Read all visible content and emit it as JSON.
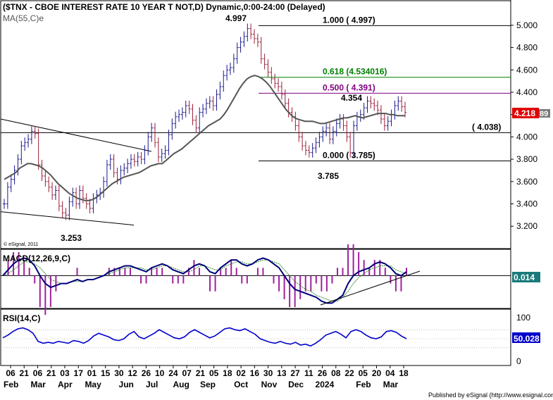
{
  "header": {
    "title": "($TNX - CBOE INTEREST RATE 10 YEAR T NOT,D) Dynamic,0:00-24:00 (Delayed)",
    "ma_label": "MA(55,C)e",
    "copyright": "© eSignal, 2011",
    "footer": "Published by eSignal (http://www.esignal.com)"
  },
  "colors": {
    "price_bar": "#1a1a8c",
    "price_bar_down": "#9a1f3a",
    "ma_line": "#555555",
    "fib_green": "#008000",
    "fib_purple": "#800080",
    "macd_line": "#00007a",
    "signal_line": "#2f8f2f",
    "histogram": "#a020a0",
    "rsi_line": "#0000cc",
    "price_box": "#e00000",
    "value_box_blue": "#0000cc",
    "value_box_teal": "#1a7a7a"
  },
  "chart_data": [
    {
      "type": "line",
      "name": "price-panel",
      "series_type": "ohlc-bars",
      "y_ticks": [
        "5.000",
        "4.800",
        "4.600",
        "4.400",
        "4.200",
        "4.000",
        "3.800",
        "3.600",
        "3.400",
        "3.200"
      ],
      "ylim": [
        3.05,
        5.1
      ],
      "last_price": "4.218",
      "last_price_suffix": "89",
      "close": [
        3.4,
        3.55,
        3.62,
        3.7,
        3.8,
        3.92,
        3.95,
        3.98,
        4.05,
        4.03,
        3.75,
        3.65,
        3.6,
        3.55,
        3.48,
        3.52,
        3.38,
        3.32,
        3.3,
        3.42,
        3.5,
        3.4,
        3.52,
        3.45,
        3.4,
        3.36,
        3.45,
        3.48,
        3.5,
        3.6,
        3.75,
        3.8,
        3.68,
        3.62,
        3.7,
        3.72,
        3.76,
        3.8,
        3.78,
        3.82,
        3.8,
        3.88,
        4.0,
        4.08,
        3.95,
        3.82,
        3.85,
        3.88,
        4.02,
        4.12,
        4.18,
        4.2,
        4.22,
        4.28,
        4.25,
        4.15,
        4.08,
        4.22,
        4.25,
        4.3,
        4.32,
        4.28,
        4.38,
        4.45,
        4.55,
        4.6,
        4.62,
        4.7,
        4.8,
        4.85,
        4.9,
        4.97,
        4.92,
        4.88,
        4.85,
        4.7,
        4.65,
        4.58,
        4.52,
        4.48,
        4.45,
        4.38,
        4.3,
        4.22,
        4.18,
        4.1,
        4.0,
        3.92,
        3.88,
        3.86,
        3.9,
        3.95,
        4.0,
        4.05,
        4.08,
        3.98,
        4.05,
        4.12,
        4.16,
        4.1,
        4.0,
        3.86,
        4.1,
        4.18,
        4.2,
        4.26,
        4.32,
        4.3,
        4.28,
        4.24,
        4.16,
        4.1,
        4.14,
        4.2,
        4.28,
        4.32,
        4.27,
        4.22
      ],
      "ma": [
        3.62,
        3.64,
        3.66,
        3.68,
        3.72,
        3.74,
        3.76,
        3.76,
        3.75,
        3.74,
        3.72,
        3.69,
        3.66,
        3.62,
        3.58,
        3.55,
        3.52,
        3.49,
        3.47,
        3.45,
        3.44,
        3.43,
        3.43,
        3.44,
        3.46,
        3.49,
        3.52,
        3.55,
        3.58,
        3.6,
        3.62,
        3.64,
        3.65,
        3.66,
        3.67,
        3.68,
        3.7,
        3.72,
        3.74,
        3.75,
        3.76,
        3.76,
        3.79,
        3.82,
        3.85,
        3.87,
        3.89,
        3.92,
        3.95,
        3.98,
        4.01,
        4.04,
        4.07,
        4.1,
        4.12,
        4.14,
        4.16,
        4.2,
        4.25,
        4.31,
        4.37,
        4.43,
        4.48,
        4.52,
        4.54,
        4.55,
        4.54,
        4.52,
        4.49,
        4.45,
        4.4,
        4.35,
        4.3,
        4.25,
        4.21,
        4.18,
        4.16,
        4.15,
        4.14,
        4.14,
        4.14,
        4.13,
        4.12,
        4.12,
        4.13,
        4.14,
        4.15,
        4.16,
        4.17,
        4.17,
        4.18,
        4.19,
        4.18,
        4.17,
        4.18,
        4.19,
        4.2,
        4.21,
        4.21,
        4.21,
        4.2,
        4.2,
        4.19,
        4.19,
        4.19
      ],
      "fib_levels": [
        {
          "value": 4.997,
          "label": "1.000 ( 4.997)"
        },
        {
          "value": 4.534016,
          "label": "0.618 (4.534016)"
        },
        {
          "value": 4.391,
          "label": "0.500 ( 4.391)"
        },
        {
          "value": 3.785,
          "label": "0.000 ( 3.785)"
        }
      ],
      "support_level": {
        "value": 4.038,
        "label": "( 4.038)"
      },
      "annotations": [
        {
          "text": "4.997",
          "x_index": 71
        },
        {
          "text": "4.354",
          "x_index": 100
        },
        {
          "text": "3.785",
          "x_index": 92
        },
        {
          "text": "3.253",
          "x_index": 18
        }
      ]
    },
    {
      "type": "line",
      "name": "macd-panel",
      "label": "MACD(12,26,9,C)",
      "value": "0.014",
      "macd": [
        0.0,
        0.03,
        0.06,
        0.08,
        0.09,
        0.08,
        0.05,
        0.0,
        -0.04,
        -0.06,
        -0.05,
        -0.04,
        -0.04,
        -0.03,
        -0.02,
        -0.03,
        -0.02,
        -0.02,
        -0.01,
        0.0,
        0.02,
        0.03,
        0.04,
        0.05,
        0.05,
        0.04,
        0.03,
        0.02,
        0.04,
        0.05,
        0.06,
        0.05,
        0.03,
        0.02,
        0.01,
        0.03,
        0.05,
        0.06,
        0.05,
        0.02,
        0.01,
        0.04,
        0.06,
        0.08,
        0.08,
        0.06,
        0.05,
        0.06,
        0.08,
        0.09,
        0.08,
        0.06,
        0.04,
        0.0,
        -0.04,
        -0.07,
        -0.08,
        -0.09,
        -0.1,
        -0.11,
        -0.13,
        -0.14,
        -0.14,
        -0.12,
        -0.1,
        -0.04,
        0.0,
        0.02,
        0.03,
        0.04,
        0.06,
        0.07,
        0.06,
        0.04,
        0.01,
        0.0,
        0.02
      ],
      "signal": [
        0.0,
        0.01,
        0.03,
        0.05,
        0.07,
        0.07,
        0.06,
        0.04,
        0.01,
        -0.02,
        -0.03,
        -0.04,
        -0.04,
        -0.03,
        -0.03,
        -0.03,
        -0.02,
        -0.02,
        -0.01,
        0.0,
        0.01,
        0.02,
        0.03,
        0.04,
        0.04,
        0.04,
        0.04,
        0.03,
        0.03,
        0.04,
        0.05,
        0.05,
        0.04,
        0.03,
        0.02,
        0.02,
        0.03,
        0.05,
        0.05,
        0.04,
        0.03,
        0.03,
        0.05,
        0.06,
        0.07,
        0.07,
        0.06,
        0.06,
        0.07,
        0.08,
        0.08,
        0.07,
        0.06,
        0.03,
        0.0,
        -0.03,
        -0.05,
        -0.07,
        -0.08,
        -0.1,
        -0.11,
        -0.12,
        -0.13,
        -0.13,
        -0.11,
        -0.08,
        -0.04,
        -0.01,
        0.01,
        0.03,
        0.04,
        0.05,
        0.05,
        0.05,
        0.03,
        0.02,
        0.01
      ],
      "ylim": [
        -0.16,
        0.12
      ]
    },
    {
      "type": "line",
      "name": "rsi-panel",
      "label": "RSI(14,C)",
      "value": "50.028",
      "y_ticks": [
        "100",
        "0"
      ],
      "rsi": [
        52,
        58,
        66,
        72,
        74,
        70,
        62,
        44,
        40,
        42,
        40,
        44,
        42,
        40,
        46,
        44,
        40,
        46,
        56,
        62,
        58,
        54,
        48,
        46,
        50,
        60,
        66,
        54,
        50,
        56,
        62,
        70,
        64,
        58,
        52,
        50,
        54,
        64,
        70,
        64,
        58,
        52,
        56,
        64,
        72,
        74,
        70,
        68,
        72,
        66,
        60,
        50,
        46,
        42,
        40,
        44,
        40,
        38,
        42,
        36,
        38,
        34,
        40,
        48,
        58,
        62,
        66,
        60,
        52,
        66,
        70,
        66,
        58,
        52,
        50,
        54,
        66,
        68,
        64,
        56,
        50
      ],
      "ylim": [
        0,
        100
      ]
    }
  ],
  "x_axis": {
    "day_ticks": [
      "06",
      "21",
      "06",
      "21",
      "03",
      "17",
      "01",
      "15",
      "30",
      "12",
      "26",
      "10",
      "24",
      "07",
      "21",
      "05",
      "18",
      "02",
      "16",
      "30",
      "13",
      "27",
      "11",
      "26",
      "08",
      "22",
      "05",
      "20",
      "04",
      "18"
    ],
    "month_labels": [
      "Feb",
      "Mar",
      "Apr",
      "May",
      "Jun",
      "Jul",
      "Aug",
      "Sep",
      "Oct",
      "Nov",
      "Dec",
      "2024",
      "Feb",
      "Mar"
    ]
  }
}
